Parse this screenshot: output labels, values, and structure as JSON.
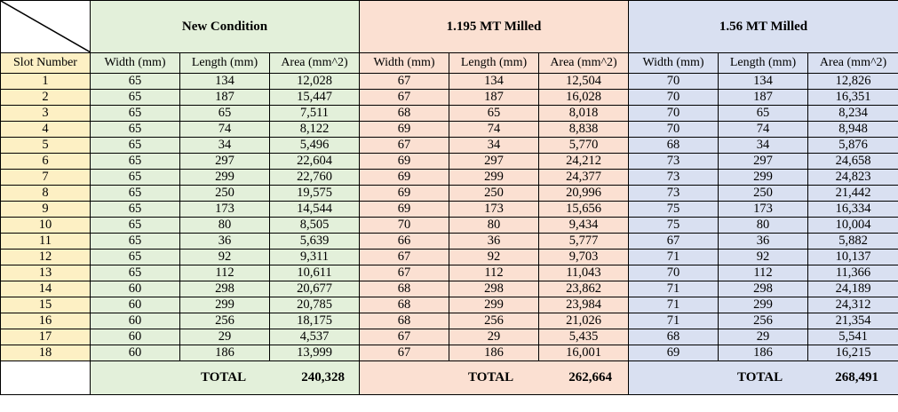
{
  "groups": [
    {
      "label": "New Condition",
      "total_label": "TOTAL",
      "total": "240,328"
    },
    {
      "label": "1.195 MT Milled",
      "total_label": "TOTAL",
      "total": "262,664"
    },
    {
      "label": "1.56 MT Milled",
      "total_label": "TOTAL",
      "total": "268,491"
    }
  ],
  "columns": {
    "slot": "Slot Number",
    "width": "Width (mm)",
    "length": "Length (mm)",
    "area": "Area (mm^2)"
  },
  "rows": [
    {
      "slot": "1",
      "new": [
        "65",
        "134",
        "12,028"
      ],
      "mt1": [
        "67",
        "134",
        "12,504"
      ],
      "mt2": [
        "70",
        "134",
        "12,826"
      ]
    },
    {
      "slot": "2",
      "new": [
        "65",
        "187",
        "15,447"
      ],
      "mt1": [
        "67",
        "187",
        "16,028"
      ],
      "mt2": [
        "70",
        "187",
        "16,351"
      ]
    },
    {
      "slot": "3",
      "new": [
        "65",
        "65",
        "7,511"
      ],
      "mt1": [
        "68",
        "65",
        "8,018"
      ],
      "mt2": [
        "70",
        "65",
        "8,234"
      ]
    },
    {
      "slot": "4",
      "new": [
        "65",
        "74",
        "8,122"
      ],
      "mt1": [
        "69",
        "74",
        "8,838"
      ],
      "mt2": [
        "70",
        "74",
        "8,948"
      ]
    },
    {
      "slot": "5",
      "new": [
        "65",
        "34",
        "5,496"
      ],
      "mt1": [
        "67",
        "34",
        "5,770"
      ],
      "mt2": [
        "68",
        "34",
        "5,876"
      ]
    },
    {
      "slot": "6",
      "new": [
        "65",
        "297",
        "22,604"
      ],
      "mt1": [
        "69",
        "297",
        "24,212"
      ],
      "mt2": [
        "73",
        "297",
        "24,658"
      ]
    },
    {
      "slot": "7",
      "new": [
        "65",
        "299",
        "22,760"
      ],
      "mt1": [
        "69",
        "299",
        "24,377"
      ],
      "mt2": [
        "73",
        "299",
        "24,823"
      ]
    },
    {
      "slot": "8",
      "new": [
        "65",
        "250",
        "19,575"
      ],
      "mt1": [
        "69",
        "250",
        "20,996"
      ],
      "mt2": [
        "73",
        "250",
        "21,442"
      ]
    },
    {
      "slot": "9",
      "new": [
        "65",
        "173",
        "14,544"
      ],
      "mt1": [
        "69",
        "173",
        "15,656"
      ],
      "mt2": [
        "75",
        "173",
        "16,334"
      ]
    },
    {
      "slot": "10",
      "new": [
        "65",
        "80",
        "8,505"
      ],
      "mt1": [
        "70",
        "80",
        "9,434"
      ],
      "mt2": [
        "75",
        "80",
        "10,004"
      ]
    },
    {
      "slot": "11",
      "new": [
        "65",
        "36",
        "5,639"
      ],
      "mt1": [
        "66",
        "36",
        "5,777"
      ],
      "mt2": [
        "67",
        "36",
        "5,882"
      ]
    },
    {
      "slot": "12",
      "new": [
        "65",
        "92",
        "9,311"
      ],
      "mt1": [
        "67",
        "92",
        "9,703"
      ],
      "mt2": [
        "71",
        "92",
        "10,137"
      ]
    },
    {
      "slot": "13",
      "new": [
        "65",
        "112",
        "10,611"
      ],
      "mt1": [
        "67",
        "112",
        "11,043"
      ],
      "mt2": [
        "70",
        "112",
        "11,366"
      ]
    },
    {
      "slot": "14",
      "new": [
        "60",
        "298",
        "20,677"
      ],
      "mt1": [
        "68",
        "298",
        "23,862"
      ],
      "mt2": [
        "71",
        "298",
        "24,189"
      ]
    },
    {
      "slot": "15",
      "new": [
        "60",
        "299",
        "20,785"
      ],
      "mt1": [
        "68",
        "299",
        "23,984"
      ],
      "mt2": [
        "71",
        "299",
        "24,312"
      ]
    },
    {
      "slot": "16",
      "new": [
        "60",
        "256",
        "18,175"
      ],
      "mt1": [
        "68",
        "256",
        "21,026"
      ],
      "mt2": [
        "71",
        "256",
        "21,354"
      ]
    },
    {
      "slot": "17",
      "new": [
        "60",
        "29",
        "4,537"
      ],
      "mt1": [
        "67",
        "29",
        "5,435"
      ],
      "mt2": [
        "68",
        "29",
        "5,541"
      ]
    },
    {
      "slot": "18",
      "new": [
        "60",
        "186",
        "13,999"
      ],
      "mt1": [
        "67",
        "186",
        "16,001"
      ],
      "mt2": [
        "69",
        "186",
        "16,215"
      ]
    }
  ],
  "colors": {
    "slot_bg": "#fdf0c4",
    "new_bg": "#e3f0da",
    "mt1_bg": "#fbe0d2",
    "mt2_bg": "#d9e0f1"
  }
}
